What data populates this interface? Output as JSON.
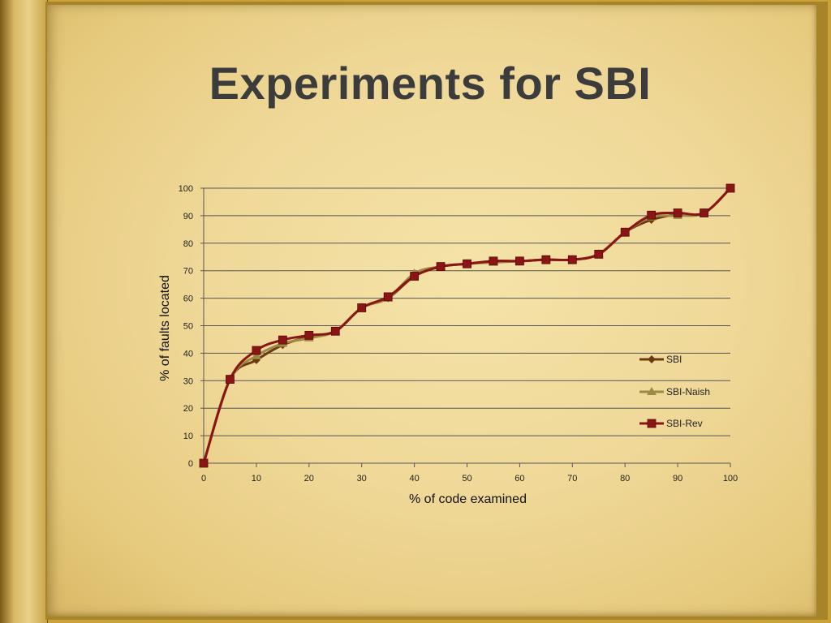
{
  "slide": {
    "title": "Experiments for SBI"
  },
  "colors": {
    "page": "#efd898",
    "sbi": "#6b3a12",
    "sbi_naish": "#9c8a45",
    "sbi_rev": "#8b1414",
    "grid": "#555555",
    "title": "#3c3c3c"
  },
  "chart_data": {
    "type": "line",
    "title": "",
    "xlabel": "% of code examined",
    "ylabel": "% of faults located",
    "xlim": [
      0,
      100
    ],
    "ylim": [
      0,
      100
    ],
    "x_ticks": [
      0,
      10,
      20,
      30,
      40,
      50,
      60,
      70,
      80,
      90,
      100
    ],
    "y_ticks": [
      0,
      10,
      20,
      30,
      40,
      50,
      60,
      70,
      80,
      90,
      100
    ],
    "grid": "horizontal",
    "legend_position": "right",
    "x": [
      0,
      5,
      10,
      15,
      20,
      25,
      30,
      35,
      40,
      45,
      50,
      55,
      60,
      65,
      70,
      75,
      80,
      85,
      90,
      95,
      100
    ],
    "series": [
      {
        "name": "SBI",
        "marker": "diamond",
        "color": "#6b3a12",
        "values": [
          0,
          30.5,
          37.5,
          43,
          46,
          48,
          56.5,
          60,
          68,
          71.5,
          72.5,
          73.5,
          73.5,
          74,
          74,
          76,
          84,
          88.5,
          90.5,
          91,
          100
        ]
      },
      {
        "name": "SBI-Naish",
        "marker": "triangle",
        "color": "#9c8a45",
        "values": [
          0,
          30.5,
          39,
          43.5,
          45.5,
          48,
          56.5,
          60,
          69,
          71.5,
          72.5,
          73,
          73.5,
          74,
          74,
          76,
          84,
          89.5,
          90,
          91,
          100
        ]
      },
      {
        "name": "SBI-Rev",
        "marker": "square",
        "color": "#8b1414",
        "values": [
          0,
          30.5,
          41,
          44.8,
          46.5,
          48,
          56.5,
          60.5,
          68,
          71.5,
          72.5,
          73.5,
          73.5,
          74,
          74,
          76,
          84,
          90.2,
          91,
          91,
          100
        ]
      }
    ]
  }
}
